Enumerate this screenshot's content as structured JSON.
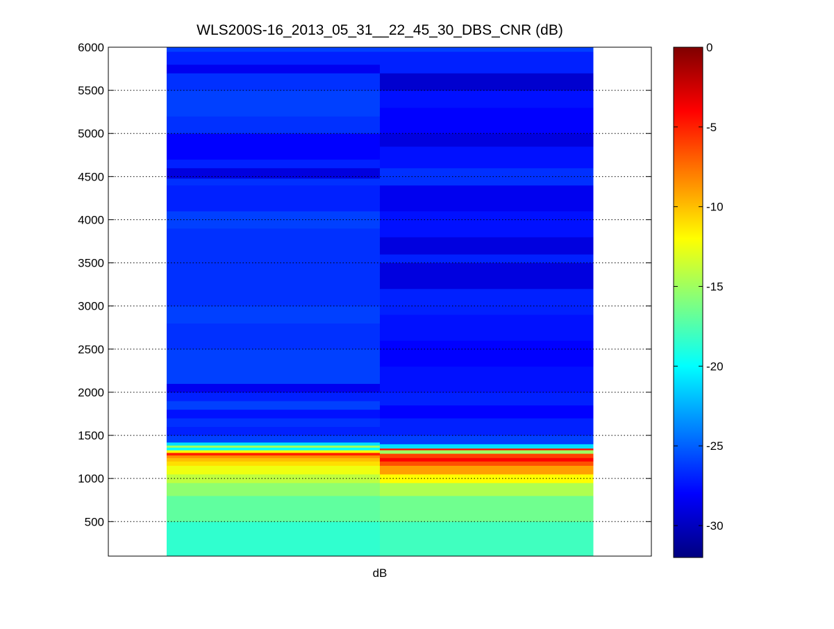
{
  "chart_data": {
    "type": "heatmap",
    "title": "WLS200S-16_2013_05_31__22_45_30_DBS_CNR (dB)",
    "xlabel": "dB",
    "ylabel": "",
    "ylim": [
      100,
      6000
    ],
    "yticks": [
      500,
      1000,
      1500,
      2000,
      2500,
      3000,
      3500,
      4000,
      4500,
      5000,
      5500,
      6000
    ],
    "grid": "y-dotted",
    "colormap": "jet",
    "colorbar": {
      "position": "right",
      "range": [
        -32,
        0
      ],
      "ticks": [
        0,
        -5,
        -10,
        -15,
        -20,
        -25,
        -30
      ]
    },
    "columns": 2,
    "series": [
      {
        "points": [
          [
            100,
            -18.5
          ],
          [
            500,
            -17.0
          ],
          [
            800,
            -15.5
          ],
          [
            950,
            -14.0
          ],
          [
            1050,
            -12.5
          ],
          [
            1150,
            -11.0
          ],
          [
            1200,
            -10.0
          ],
          [
            1240,
            -8.5
          ],
          [
            1270,
            -5.0
          ],
          [
            1300,
            -12.0
          ],
          [
            1330,
            -20.0
          ],
          [
            1360,
            -15.0
          ],
          [
            1385,
            -21.0
          ],
          [
            1420,
            -26.0
          ],
          [
            1500,
            -27.0
          ],
          [
            1600,
            -26.5
          ],
          [
            1700,
            -27.5
          ],
          [
            1800,
            -26.0
          ],
          [
            1900,
            -27.0
          ],
          [
            2000,
            -28.5
          ],
          [
            2100,
            -26.0
          ],
          [
            2500,
            -26.5
          ],
          [
            2800,
            -26.0
          ],
          [
            3000,
            -26.5
          ],
          [
            3500,
            -26.5
          ],
          [
            3900,
            -26.0
          ],
          [
            4100,
            -27.0
          ],
          [
            4400,
            -26.5
          ],
          [
            4480,
            -29.0
          ],
          [
            4600,
            -27.0
          ],
          [
            4700,
            -28.0
          ],
          [
            5000,
            -26.5
          ],
          [
            5200,
            -26.0
          ],
          [
            5500,
            -26.5
          ],
          [
            5700,
            -28.5
          ],
          [
            5800,
            -27.0
          ],
          [
            5950,
            -26.0
          ]
        ]
      },
      {
        "points": [
          [
            100,
            -18.0
          ],
          [
            500,
            -16.5
          ],
          [
            800,
            -14.5
          ],
          [
            950,
            -12.0
          ],
          [
            1050,
            -9.0
          ],
          [
            1150,
            -6.5
          ],
          [
            1200,
            -4.0
          ],
          [
            1240,
            -6.0
          ],
          [
            1290,
            -15.0
          ],
          [
            1330,
            -4.5
          ],
          [
            1350,
            -21.0
          ],
          [
            1400,
            -26.0
          ],
          [
            1500,
            -27.0
          ],
          [
            1700,
            -28.0
          ],
          [
            1850,
            -27.0
          ],
          [
            2000,
            -27.5
          ],
          [
            2300,
            -28.0
          ],
          [
            2600,
            -27.5
          ],
          [
            2900,
            -27.0
          ],
          [
            3200,
            -29.0
          ],
          [
            3500,
            -27.0
          ],
          [
            3600,
            -29.0
          ],
          [
            3800,
            -27.5
          ],
          [
            4100,
            -28.5
          ],
          [
            4400,
            -26.5
          ],
          [
            4600,
            -27.5
          ],
          [
            4850,
            -29.0
          ],
          [
            5000,
            -28.0
          ],
          [
            5300,
            -27.5
          ],
          [
            5500,
            -29.5
          ],
          [
            5700,
            -27.0
          ],
          [
            5950,
            -26.0
          ]
        ]
      }
    ]
  }
}
